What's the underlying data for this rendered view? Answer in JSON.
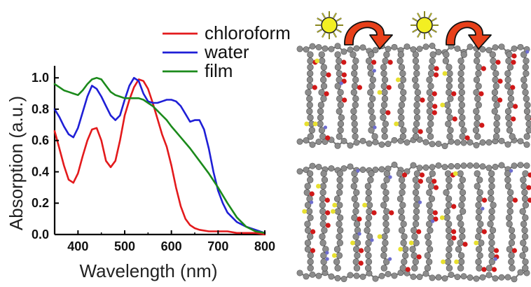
{
  "chart_data": {
    "type": "line",
    "xlabel": "Wavelength (nm)",
    "ylabel": "Absorption (a.u.)",
    "xlim": [
      350,
      800
    ],
    "ylim": [
      0,
      1.05
    ],
    "xticks": [
      400,
      500,
      600,
      700,
      800
    ],
    "yticks": [
      0.0,
      0.2,
      0.4,
      0.6,
      0.8,
      1.0
    ],
    "legend_position": "top-right",
    "series": [
      {
        "name": "chloroform",
        "color": "#e31a1c",
        "x": [
          350,
          360,
          370,
          380,
          390,
          400,
          410,
          420,
          430,
          440,
          450,
          460,
          470,
          480,
          490,
          500,
          510,
          520,
          530,
          540,
          550,
          560,
          570,
          580,
          590,
          600,
          610,
          620,
          630,
          640,
          650,
          660,
          680,
          700,
          720,
          740,
          760,
          780,
          800
        ],
        "y": [
          0.66,
          0.55,
          0.44,
          0.35,
          0.33,
          0.39,
          0.5,
          0.6,
          0.67,
          0.68,
          0.6,
          0.47,
          0.43,
          0.47,
          0.6,
          0.76,
          0.86,
          0.94,
          0.99,
          0.98,
          0.93,
          0.84,
          0.74,
          0.64,
          0.56,
          0.44,
          0.3,
          0.18,
          0.1,
          0.06,
          0.04,
          0.03,
          0.02,
          0.02,
          0.02,
          0.01,
          0.01,
          0.01,
          0.0
        ]
      },
      {
        "name": "water",
        "color": "#1f1fd6",
        "x": [
          350,
          360,
          370,
          380,
          390,
          400,
          410,
          420,
          430,
          440,
          450,
          460,
          470,
          480,
          490,
          500,
          510,
          520,
          530,
          540,
          550,
          560,
          570,
          580,
          590,
          600,
          610,
          620,
          630,
          640,
          650,
          660,
          670,
          680,
          690,
          700,
          710,
          720,
          740,
          760,
          780,
          800
        ],
        "y": [
          0.8,
          0.75,
          0.69,
          0.64,
          0.62,
          0.68,
          0.78,
          0.88,
          0.95,
          0.93,
          0.88,
          0.82,
          0.76,
          0.73,
          0.76,
          0.86,
          0.95,
          1.0,
          0.98,
          0.9,
          0.85,
          0.84,
          0.84,
          0.85,
          0.86,
          0.86,
          0.85,
          0.82,
          0.77,
          0.72,
          0.73,
          0.73,
          0.67,
          0.55,
          0.4,
          0.28,
          0.2,
          0.14,
          0.08,
          0.05,
          0.03,
          0.01
        ]
      },
      {
        "name": "film",
        "color": "#1b8a1b",
        "x": [
          350,
          360,
          370,
          380,
          390,
          400,
          410,
          420,
          430,
          440,
          450,
          460,
          470,
          480,
          490,
          500,
          510,
          520,
          530,
          540,
          550,
          560,
          570,
          580,
          590,
          600,
          620,
          640,
          660,
          680,
          700,
          720,
          740,
          760,
          780,
          800
        ],
        "y": [
          0.96,
          0.94,
          0.92,
          0.91,
          0.9,
          0.89,
          0.92,
          0.96,
          0.99,
          1.0,
          0.99,
          0.95,
          0.91,
          0.89,
          0.88,
          0.87,
          0.87,
          0.87,
          0.87,
          0.86,
          0.84,
          0.82,
          0.79,
          0.76,
          0.73,
          0.69,
          0.62,
          0.55,
          0.47,
          0.39,
          0.3,
          0.2,
          0.11,
          0.05,
          0.02,
          0.01
        ]
      }
    ]
  },
  "colors": {
    "axis": "#000000",
    "atom_carbon": "#8c8c8c",
    "atom_oxygen": "#d01818",
    "atom_sulfur": "#e8e030",
    "atom_nitrogen": "#6d6dcf",
    "sun": "#f2ef22",
    "arrow": "#e8401a"
  },
  "icons": [
    "sun-icon",
    "curved-arrow-icon"
  ]
}
